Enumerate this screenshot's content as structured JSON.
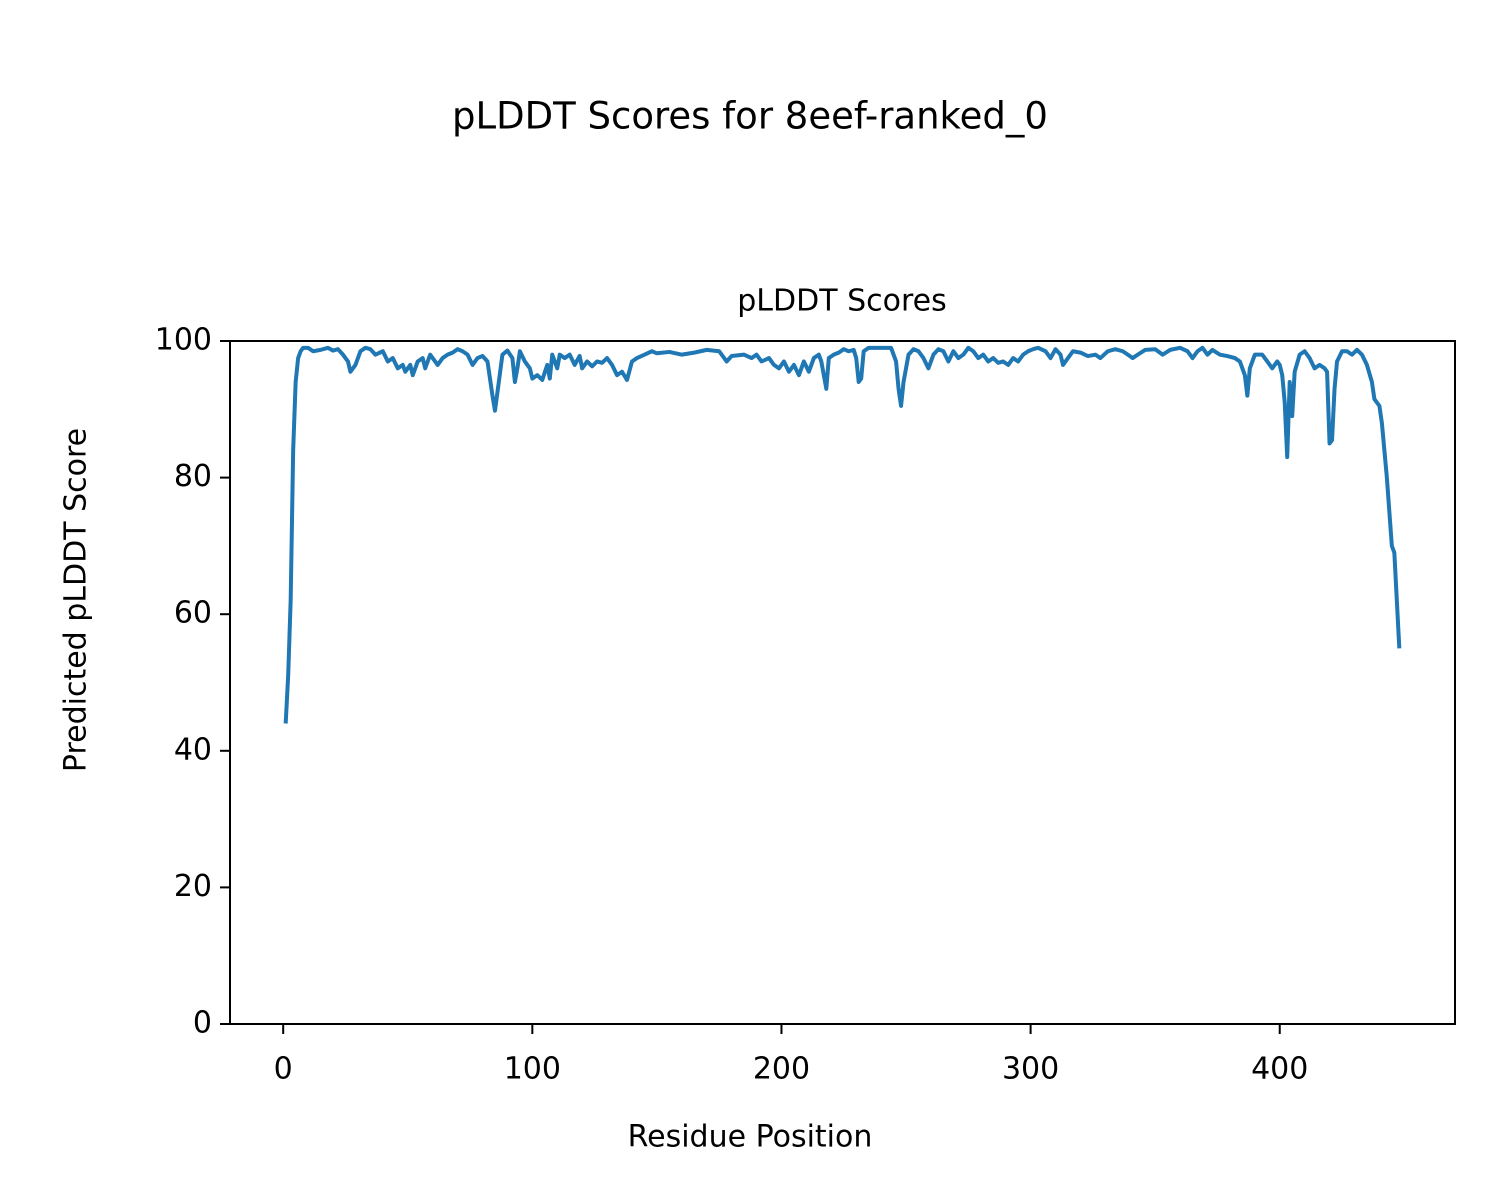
{
  "chart_data": {
    "type": "line",
    "suptitle": "pLDDT Scores for 8eef-ranked_0",
    "title": "pLDDT Scores",
    "xlabel": "Residue Position",
    "ylabel": "Predicted pLDDT Score",
    "xlim": [
      -21.35,
      470.35
    ],
    "ylim": [
      0,
      100
    ],
    "xticks": [
      0,
      100,
      200,
      300,
      400
    ],
    "yticks": [
      0,
      20,
      40,
      60,
      80,
      100
    ],
    "grid": false,
    "series": [
      {
        "color": "#1f77b4",
        "x": [
          1,
          2,
          3,
          4,
          5,
          6,
          7,
          8,
          10,
          12,
          15,
          18,
          20,
          22,
          24,
          26,
          27,
          29,
          31,
          33,
          35,
          37,
          40,
          42,
          44,
          46,
          48,
          49,
          51,
          52,
          54,
          56,
          57,
          59,
          61,
          62,
          64,
          66,
          68,
          70,
          72,
          74,
          76,
          78,
          80,
          82,
          84,
          85,
          86,
          88,
          90,
          92,
          93,
          94,
          95,
          97,
          99,
          100,
          102,
          104,
          106,
          107,
          108,
          110,
          111,
          113,
          115,
          117,
          119,
          120,
          122,
          124,
          126,
          128,
          130,
          132,
          134,
          136,
          138,
          140,
          142,
          145,
          148,
          150,
          155,
          160,
          165,
          170,
          175,
          178,
          180,
          185,
          188,
          190,
          192,
          195,
          197,
          199,
          201,
          203,
          205,
          207,
          209,
          211,
          213,
          215,
          216,
          218,
          219,
          221,
          223,
          225,
          227,
          229,
          230,
          231,
          232,
          233,
          235,
          240,
          244,
          246,
          247,
          248,
          249,
          251,
          253,
          255,
          257,
          259,
          261,
          263,
          265,
          267,
          269,
          271,
          273,
          275,
          277,
          279,
          281,
          283,
          285,
          287,
          289,
          291,
          293,
          295,
          297,
          299,
          301,
          303,
          306,
          308,
          310,
          312,
          313,
          315,
          317,
          320,
          323,
          326,
          328,
          331,
          334,
          337,
          339,
          341,
          343,
          346,
          350,
          353,
          356,
          360,
          363,
          365,
          367,
          369,
          371,
          373,
          376,
          379,
          382,
          384,
          386,
          387,
          388,
          390,
          393,
          395,
          397,
          399,
          400,
          401,
          402,
          403,
          404,
          405,
          406,
          408,
          410,
          412,
          414,
          416,
          418,
          419,
          420,
          421,
          422,
          423,
          425,
          427,
          429,
          431,
          433,
          435,
          437,
          438,
          440,
          441,
          443,
          445,
          446,
          448
        ],
        "values": [
          44,
          51,
          62,
          84,
          94,
          97.5,
          98.5,
          99,
          99,
          98.5,
          98.7,
          99,
          98.6,
          98.8,
          98,
          97,
          95.5,
          96.5,
          98.5,
          99,
          98.8,
          98,
          98.5,
          97,
          97.5,
          96,
          96.5,
          95.5,
          96.5,
          95,
          97,
          97.5,
          96,
          98,
          97,
          96.5,
          97.5,
          98,
          98.3,
          98.8,
          98.5,
          98,
          96.5,
          97.5,
          97.8,
          97,
          92,
          89.8,
          92.5,
          98,
          98.6,
          97.5,
          94,
          96,
          98.5,
          97,
          96,
          94.5,
          95,
          94.3,
          96.5,
          94.5,
          98,
          96,
          98,
          97.5,
          98,
          96.5,
          97.8,
          96,
          97,
          96.3,
          97,
          96.8,
          97.5,
          96.5,
          95,
          95.5,
          94.3,
          97,
          97.5,
          98,
          98.5,
          98.2,
          98.4,
          98,
          98.3,
          98.7,
          98.5,
          97,
          97.8,
          98,
          97.5,
          98,
          97,
          97.5,
          96.5,
          96,
          97,
          95.5,
          96.5,
          95,
          97,
          95.5,
          97.5,
          98,
          97,
          93,
          97.5,
          98,
          98.3,
          98.8,
          98.5,
          98.7,
          97.5,
          94,
          94.5,
          98.5,
          99,
          99,
          99,
          97,
          93,
          90.5,
          94,
          98,
          98.8,
          98.5,
          97.5,
          96,
          98,
          98.8,
          98.5,
          97,
          98.5,
          97.5,
          98,
          99,
          98.5,
          97.5,
          98,
          97,
          97.5,
          96.8,
          97,
          96.5,
          97.5,
          97,
          98,
          98.5,
          98.8,
          99,
          98.5,
          97.5,
          98.8,
          98,
          96.5,
          97.5,
          98.5,
          98.3,
          97.8,
          98,
          97.5,
          98.5,
          98.8,
          98.5,
          98,
          97.5,
          98,
          98.7,
          98.8,
          98,
          98.7,
          99,
          98.5,
          97.5,
          98.5,
          99,
          98,
          98.7,
          98,
          97.8,
          97.5,
          97,
          95,
          92,
          96,
          98,
          98,
          97,
          96,
          97,
          96.5,
          95,
          91,
          83,
          94,
          89,
          95.5,
          98,
          98.5,
          97.5,
          96,
          96.5,
          96,
          95.5,
          85,
          85.5,
          93,
          97,
          98.5,
          98.5,
          98,
          98.7,
          98,
          96.5,
          94,
          91.5,
          90.5,
          88,
          80,
          70,
          69,
          55
        ]
      }
    ]
  }
}
